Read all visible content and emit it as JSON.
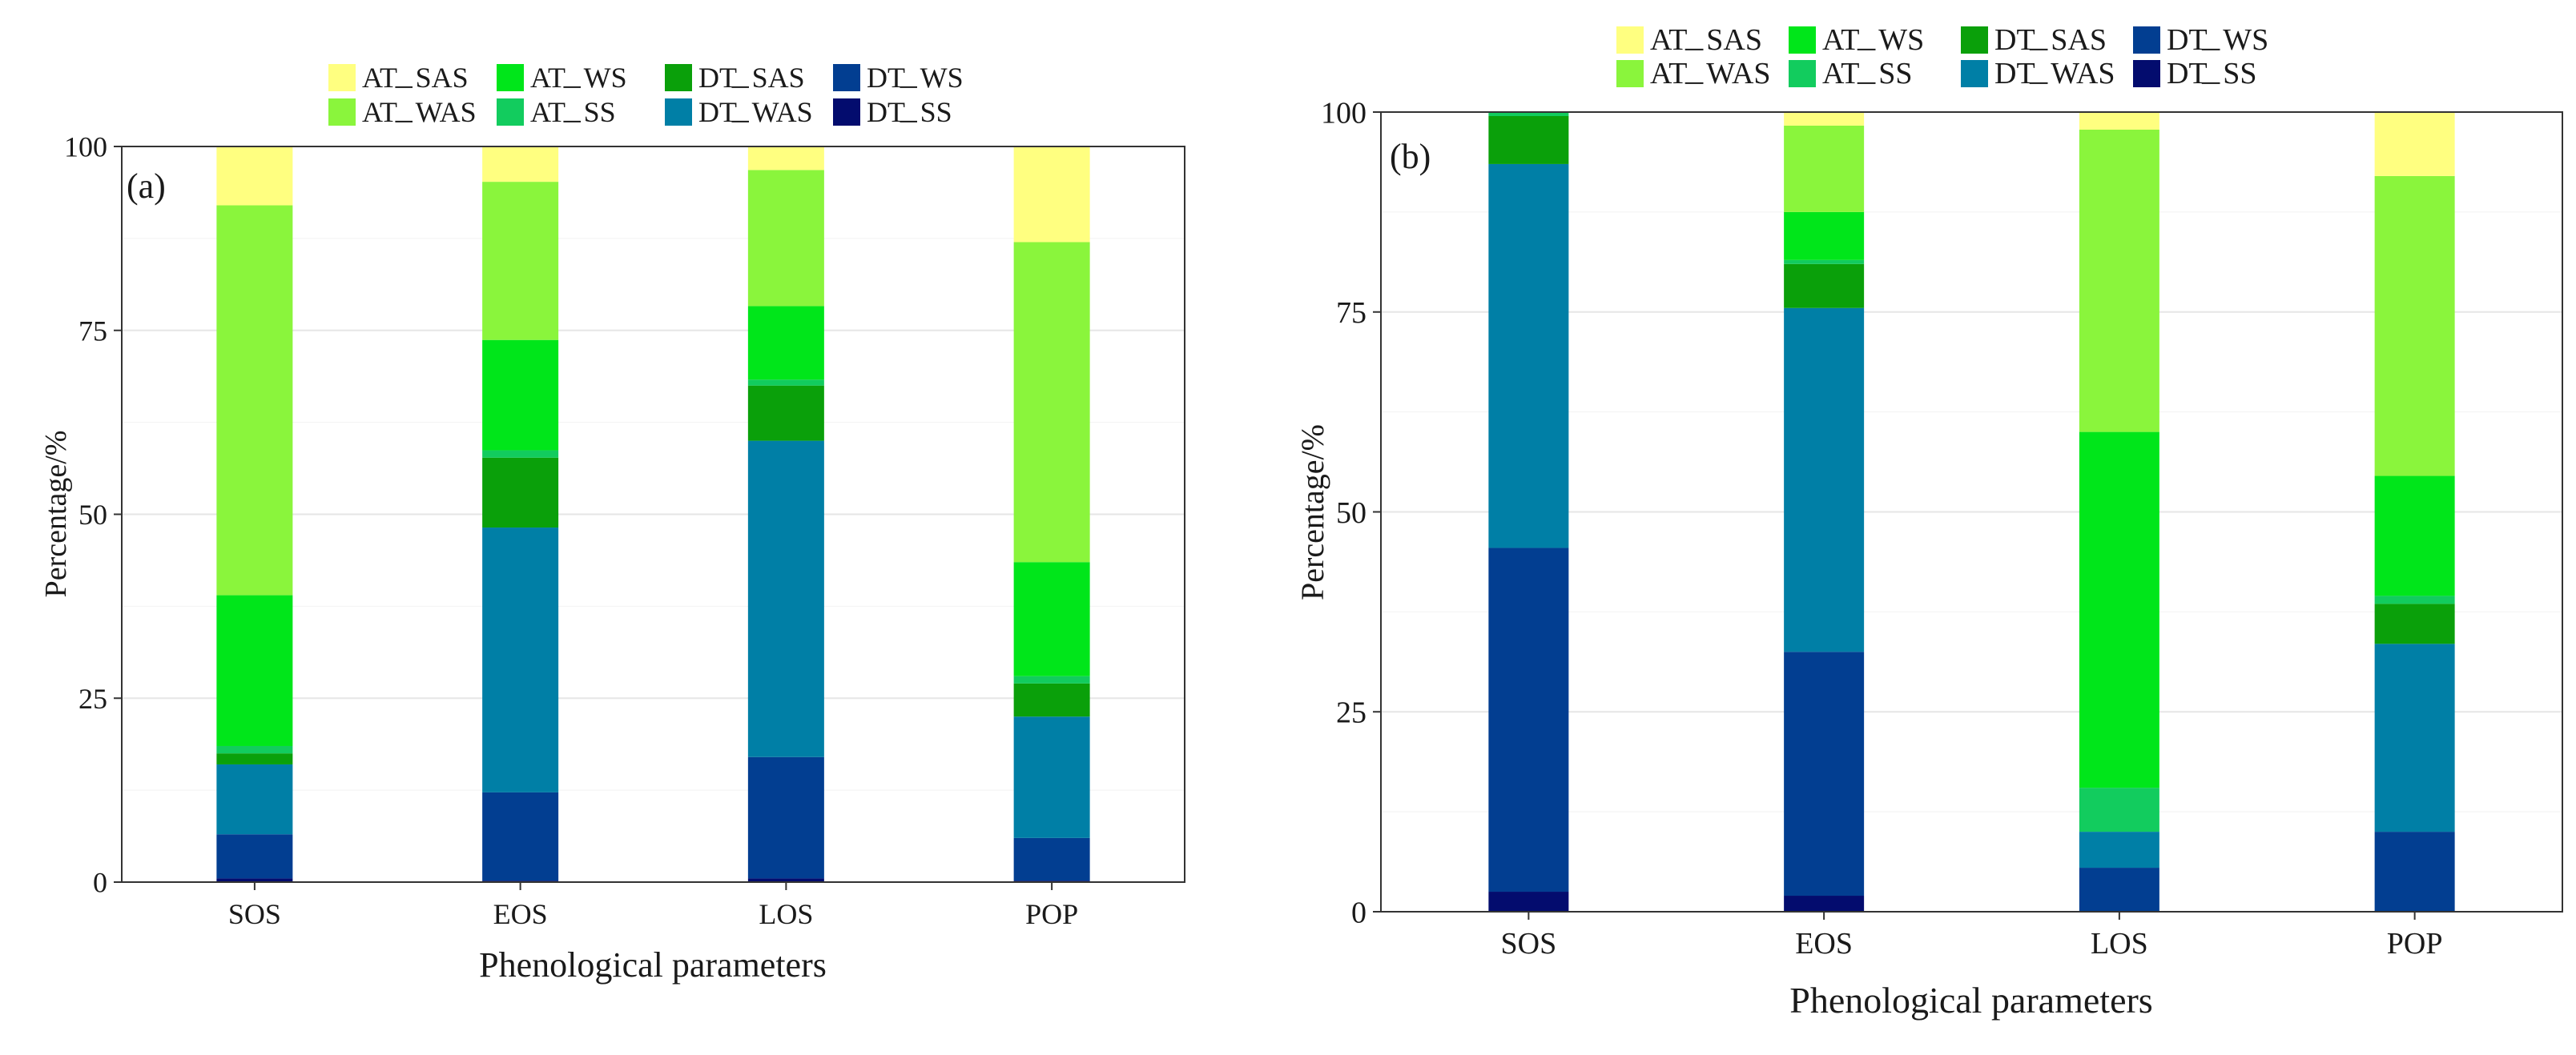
{
  "chart_data": [
    {
      "type": "bar",
      "stacked": true,
      "panel_label": "(a)",
      "xlabel": "Phenological parameters",
      "ylabel": "Percentage/%",
      "ylim": [
        0,
        100
      ],
      "yticks": [
        0,
        25,
        50,
        75,
        100
      ],
      "categories": [
        "SOS",
        "EOS",
        "LOS",
        "POP"
      ],
      "legend": {
        "position": "top",
        "entries": [
          "AT_SAS",
          "AT_WS",
          "DT_SAS",
          "DT_WS",
          "AT_WAS",
          "AT_SS",
          "DT_WAS",
          "DT_SS"
        ],
        "entry_texts": [
          [
            "AT",
            "SAS"
          ],
          [
            "AT",
            "WS"
          ],
          [
            "DT",
            "SAS"
          ],
          [
            "DT",
            "WS"
          ],
          [
            "AT",
            "WAS"
          ],
          [
            "AT",
            "SS"
          ],
          [
            "DT",
            "WAS"
          ],
          [
            "DT",
            "SS"
          ]
        ]
      },
      "series": [
        {
          "name": "DT_SS",
          "values": [
            0.5,
            0.2,
            0.5,
            0.2
          ]
        },
        {
          "name": "DT_WS",
          "values": [
            6.0,
            12.0,
            16.5,
            5.8
          ]
        },
        {
          "name": "DT_WAS",
          "values": [
            9.5,
            36.0,
            43.0,
            16.5
          ]
        },
        {
          "name": "DT_SAS",
          "values": [
            1.5,
            9.5,
            7.5,
            4.5
          ]
        },
        {
          "name": "AT_SS",
          "values": [
            1.0,
            1.0,
            0.8,
            1.0
          ]
        },
        {
          "name": "AT_WS",
          "values": [
            20.5,
            15.0,
            10.0,
            15.5
          ]
        },
        {
          "name": "AT_WAS",
          "values": [
            53.0,
            21.5,
            18.5,
            43.5
          ]
        },
        {
          "name": "AT_SAS",
          "values": [
            8.0,
            4.8,
            3.2,
            13.0
          ]
        }
      ]
    },
    {
      "type": "bar",
      "stacked": true,
      "panel_label": "(b)",
      "xlabel": "Phenological parameters",
      "ylabel": "Percentage/%",
      "ylim": [
        0,
        100
      ],
      "yticks": [
        0,
        25,
        50,
        75,
        100
      ],
      "categories": [
        "SOS",
        "EOS",
        "LOS",
        "POP"
      ],
      "legend": {
        "position": "top",
        "entries": [
          "AT_SAS",
          "AT_WS",
          "DT_SAS",
          "DT_WS",
          "AT_WAS",
          "AT_SS",
          "DT_WAS",
          "DT_SS"
        ],
        "entry_texts": [
          [
            "AT",
            "SAS"
          ],
          [
            "AT",
            "WS"
          ],
          [
            "DT",
            "SAS"
          ],
          [
            "DT",
            "WS"
          ],
          [
            "AT",
            "WAS"
          ],
          [
            "AT",
            "SS"
          ],
          [
            "DT",
            "WAS"
          ],
          [
            "DT",
            "SS"
          ]
        ]
      },
      "series": [
        {
          "name": "DT_SS",
          "values": [
            2.5,
            2.0,
            0.0,
            0.0
          ]
        },
        {
          "name": "DT_WS",
          "values": [
            43.0,
            30.5,
            5.5,
            10.0
          ]
        },
        {
          "name": "DT_WAS",
          "values": [
            48.0,
            43.0,
            4.5,
            23.5
          ]
        },
        {
          "name": "DT_SAS",
          "values": [
            6.0,
            5.5,
            0.0,
            5.0
          ]
        },
        {
          "name": "AT_SS",
          "values": [
            0.5,
            0.5,
            5.5,
            1.0
          ]
        },
        {
          "name": "AT_WS",
          "values": [
            0.0,
            6.0,
            44.5,
            15.0
          ]
        },
        {
          "name": "AT_WAS",
          "values": [
            0.0,
            10.8,
            37.8,
            37.5
          ]
        },
        {
          "name": "AT_SAS",
          "values": [
            0.0,
            1.7,
            2.2,
            8.0
          ]
        }
      ]
    }
  ],
  "colors": {
    "AT_SAS": "#FFFF80",
    "AT_WAS": "#8AF53C",
    "AT_WS": "#00E61A",
    "AT_SS": "#12CC5E",
    "DT_SAS": "#0AA00A",
    "DT_WAS": "#007FA6",
    "DT_WS": "#023E91",
    "DT_SS": "#030C6E"
  }
}
